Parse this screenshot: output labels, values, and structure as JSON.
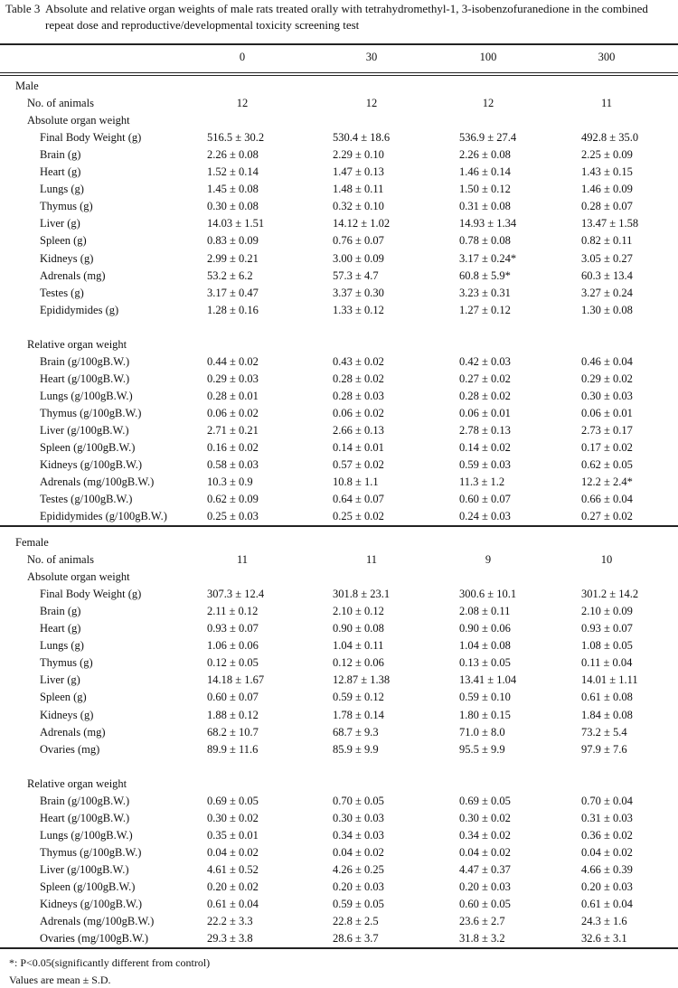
{
  "title": {
    "label": "Table 3",
    "text": "Absolute and relative organ weights of male rats treated orally with tetrahydromethyl-1, 3-isobenzofuranedione in the combined repeat dose and reproductive/developmental toxicity screening test"
  },
  "columns": [
    "0",
    "30",
    "100",
    "300"
  ],
  "sections": [
    {
      "name": "Male",
      "animals_label": "No. of animals",
      "animals": [
        "12",
        "12",
        "12",
        "11"
      ],
      "groups": [
        {
          "name": "Absolute organ weight",
          "rows": [
            {
              "label": "Final Body Weight (g)",
              "values": [
                "516.5 ± 30.2",
                "530.4 ± 18.6",
                "536.9 ± 27.4",
                "492.8 ± 35.0"
              ]
            },
            {
              "label": "Brain (g)",
              "values": [
                "2.26 ± 0.08",
                "2.29 ± 0.10",
                "2.26 ± 0.08",
                "2.25 ± 0.09"
              ]
            },
            {
              "label": "Heart (g)",
              "values": [
                "1.52 ± 0.14",
                "1.47 ± 0.13",
                "1.46 ± 0.14",
                "1.43 ± 0.15"
              ]
            },
            {
              "label": "Lungs (g)",
              "values": [
                "1.45 ± 0.08",
                "1.48 ± 0.11",
                "1.50 ± 0.12",
                "1.46 ± 0.09"
              ]
            },
            {
              "label": "Thymus (g)",
              "values": [
                "0.30 ± 0.08",
                "0.32 ± 0.10",
                "0.31 ± 0.08",
                "0.28 ± 0.07"
              ]
            },
            {
              "label": "Liver (g)",
              "values": [
                "14.03 ± 1.51",
                "14.12 ± 1.02",
                "14.93 ± 1.34",
                "13.47 ± 1.58"
              ]
            },
            {
              "label": "Spleen (g)",
              "values": [
                "0.83 ± 0.09",
                "0.76 ± 0.07",
                "0.78 ± 0.08",
                "0.82 ± 0.11"
              ]
            },
            {
              "label": "Kidneys (g)",
              "values": [
                "2.99 ± 0.21",
                "3.00 ± 0.09",
                "3.17 ± 0.24*",
                "3.05 ± 0.27"
              ]
            },
            {
              "label": "Adrenals (mg)",
              "values": [
                "53.2 ± 6.2",
                "57.3 ± 4.7",
                "60.8 ± 5.9*",
                "60.3 ± 13.4"
              ]
            },
            {
              "label": "Testes (g)",
              "values": [
                "3.17 ± 0.47",
                "3.37 ± 0.30",
                "3.23 ± 0.31",
                "3.27 ± 0.24"
              ]
            },
            {
              "label": "Epididymides (g)",
              "values": [
                "1.28 ± 0.16",
                "1.33 ± 0.12",
                "1.27 ± 0.12",
                "1.30 ± 0.08"
              ]
            }
          ]
        },
        {
          "name": "Relative organ weight",
          "rows": [
            {
              "label": "Brain (g/100gB.W.)",
              "values": [
                "0.44 ± 0.02",
                "0.43 ± 0.02",
                "0.42 ± 0.03",
                "0.46 ± 0.04"
              ]
            },
            {
              "label": "Heart (g/100gB.W.)",
              "values": [
                "0.29 ± 0.03",
                "0.28 ± 0.02",
                "0.27 ± 0.02",
                "0.29 ± 0.02"
              ]
            },
            {
              "label": "Lungs (g/100gB.W.)",
              "values": [
                "0.28 ± 0.01",
                "0.28 ± 0.03",
                "0.28 ± 0.02",
                "0.30 ± 0.03"
              ]
            },
            {
              "label": "Thymus (g/100gB.W.)",
              "values": [
                "0.06 ± 0.02",
                "0.06 ± 0.02",
                "0.06 ± 0.01",
                "0.06 ± 0.01"
              ]
            },
            {
              "label": "Liver (g/100gB.W.)",
              "values": [
                "2.71 ± 0.21",
                "2.66 ± 0.13",
                "2.78 ± 0.13",
                "2.73 ± 0.17"
              ]
            },
            {
              "label": "Spleen (g/100gB.W.)",
              "values": [
                "0.16 ± 0.02",
                "0.14 ± 0.01",
                "0.14 ± 0.02",
                "0.17 ± 0.02"
              ]
            },
            {
              "label": "Kidneys (g/100gB.W.)",
              "values": [
                "0.58 ± 0.03",
                "0.57 ± 0.02",
                "0.59 ± 0.03",
                "0.62 ± 0.05"
              ]
            },
            {
              "label": "Adrenals (mg/100gB.W.)",
              "values": [
                "10.3 ± 0.9",
                "10.8 ± 1.1",
                "11.3 ± 1.2",
                "12.2 ± 2.4*"
              ]
            },
            {
              "label": "Testes (g/100gB.W.)",
              "values": [
                "0.62 ± 0.09",
                "0.64 ± 0.07",
                "0.60 ± 0.07",
                "0.66 ± 0.04"
              ]
            },
            {
              "label": "Epididymides (g/100gB.W.)",
              "values": [
                "0.25 ± 0.03",
                "0.25 ± 0.02",
                "0.24 ± 0.03",
                "0.27 ± 0.02"
              ]
            }
          ]
        }
      ]
    },
    {
      "name": "Female",
      "animals_label": "No. of animals",
      "animals": [
        "11",
        "11",
        "9",
        "10"
      ],
      "groups": [
        {
          "name": "Absolute organ weight",
          "rows": [
            {
              "label": "Final Body Weight (g)",
              "values": [
                "307.3 ± 12.4",
                "301.8 ± 23.1",
                "300.6 ± 10.1",
                "301.2 ± 14.2"
              ]
            },
            {
              "label": "Brain (g)",
              "values": [
                "2.11 ± 0.12",
                "2.10 ± 0.12",
                "2.08 ± 0.11",
                "2.10 ± 0.09"
              ]
            },
            {
              "label": "Heart (g)",
              "values": [
                "0.93 ± 0.07",
                "0.90 ± 0.08",
                "0.90 ± 0.06",
                "0.93 ± 0.07"
              ]
            },
            {
              "label": "Lungs (g)",
              "values": [
                "1.06 ± 0.06",
                "1.04 ± 0.11",
                "1.04 ± 0.08",
                "1.08 ± 0.05"
              ]
            },
            {
              "label": "Thymus (g)",
              "values": [
                "0.12 ± 0.05",
                "0.12 ± 0.06",
                "0.13 ± 0.05",
                "0.11 ± 0.04"
              ]
            },
            {
              "label": "Liver (g)",
              "values": [
                "14.18 ± 1.67",
                "12.87 ± 1.38",
                "13.41 ± 1.04",
                "14.01 ± 1.11"
              ]
            },
            {
              "label": "Spleen (g)",
              "values": [
                "0.60 ± 0.07",
                "0.59 ± 0.12",
                "0.59 ± 0.10",
                "0.61 ± 0.08"
              ]
            },
            {
              "label": "Kidneys (g)",
              "values": [
                "1.88 ± 0.12",
                "1.78 ± 0.14",
                "1.80 ± 0.15",
                "1.84 ± 0.08"
              ]
            },
            {
              "label": "Adrenals (mg)",
              "values": [
                "68.2 ± 10.7",
                "68.7 ± 9.3",
                "71.0 ± 8.0",
                "73.2 ± 5.4"
              ]
            },
            {
              "label": "Ovaries (mg)",
              "values": [
                "89.9 ± 11.6",
                "85.9 ± 9.9",
                "95.5 ± 9.9",
                "97.9 ± 7.6"
              ]
            }
          ]
        },
        {
          "name": "Relative organ weight",
          "rows": [
            {
              "label": "Brain (g/100gB.W.)",
              "values": [
                "0.69 ± 0.05",
                "0.70 ± 0.05",
                "0.69 ± 0.05",
                "0.70 ± 0.04"
              ]
            },
            {
              "label": "Heart (g/100gB.W.)",
              "values": [
                "0.30 ± 0.02",
                "0.30 ± 0.03",
                "0.30 ± 0.02",
                "0.31 ± 0.03"
              ]
            },
            {
              "label": "Lungs (g/100gB.W.)",
              "values": [
                "0.35 ± 0.01",
                "0.34 ± 0.03",
                "0.34 ± 0.02",
                "0.36 ± 0.02"
              ]
            },
            {
              "label": "Thymus (g/100gB.W.)",
              "values": [
                "0.04 ± 0.02",
                "0.04 ± 0.02",
                "0.04 ± 0.02",
                "0.04 ± 0.02"
              ]
            },
            {
              "label": "Liver (g/100gB.W.)",
              "values": [
                "4.61 ± 0.52",
                "4.26 ± 0.25",
                "4.47 ± 0.37",
                "4.66 ± 0.39"
              ]
            },
            {
              "label": "Spleen (g/100gB.W.)",
              "values": [
                "0.20 ± 0.02",
                "0.20 ± 0.03",
                "0.20 ± 0.03",
                "0.20 ± 0.03"
              ]
            },
            {
              "label": "Kidneys (g/100gB.W.)",
              "values": [
                "0.61 ± 0.04",
                "0.59 ± 0.05",
                "0.60 ± 0.05",
                "0.61 ± 0.04"
              ]
            },
            {
              "label": "Adrenals (mg/100gB.W.)",
              "values": [
                "22.2 ± 3.3",
                "22.8 ± 2.5",
                "23.6 ± 2.7",
                "24.3 ± 1.6"
              ]
            },
            {
              "label": "Ovaries (mg/100gB.W.)",
              "values": [
                "29.3 ± 3.8",
                "28.6 ± 3.7",
                "31.8 ± 3.2",
                "32.6 ± 3.1"
              ]
            }
          ]
        }
      ]
    }
  ],
  "footnotes": [
    "*: P<0.05(significantly different from control)",
    "Values are mean ± S.D."
  ]
}
